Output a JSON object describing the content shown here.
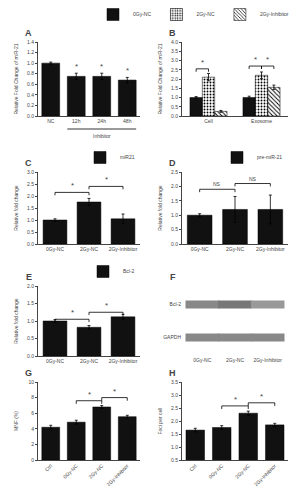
{
  "chart_data": [
    {
      "type": "bar",
      "title": "A",
      "categories": [
        "NC",
        "12h",
        "24h",
        "48h"
      ],
      "values": [
        1.0,
        0.75,
        0.75,
        0.68
      ],
      "errors": [
        0.02,
        0.06,
        0.06,
        0.05
      ],
      "color": "#111111",
      "ylabel": "Relative Fold Change of miR-21",
      "ylim": [
        0,
        1.4
      ],
      "yticks": [
        {
          "value": 0,
          "label": "0.0"
        },
        0.2,
        0.4,
        0.6,
        0.8,
        {
          "value": 1,
          "label": "1.0"
        },
        1.2,
        1.4
      ],
      "grid": false,
      "annotations": [
        {
          "text": "Inhibitor",
          "x": [
            1,
            3
          ]
        },
        {
          "text": "*",
          "x": 1
        },
        {
          "text": "*",
          "x": 2
        },
        {
          "text": "*",
          "x": 3
        }
      ]
    },
    {
      "type": "bar",
      "title": "B",
      "categories": [
        "Cell",
        "Exosome"
      ],
      "series": [
        {
          "name": "0Gy-NC",
          "color": "#111111",
          "values": [
            1.0,
            1.0
          ],
          "errors": [
            0.05,
            0.07
          ]
        },
        {
          "name": "2Gy-NC",
          "color": "#aaaaaa",
          "values": [
            2.1,
            2.2
          ],
          "errors": [
            0.2,
            0.18
          ]
        },
        {
          "name": "2Gy-Inhibitor",
          "color": "white",
          "values": [
            0.25,
            1.55
          ],
          "errors": [
            0.05,
            0.12
          ]
        }
      ],
      "ylabel": "Relative Fold Change of miR-21",
      "ylim": [
        0,
        4
      ],
      "yticks": [
        {
          "value": 0,
          "label": "0.0"
        },
        0.5,
        {
          "value": 1,
          "label": "1.0"
        },
        1.5,
        {
          "value": 2,
          "label": "2.0"
        },
        2.5,
        {
          "value": 3,
          "label": "3.0"
        },
        3.5,
        {
          "value": 4,
          "label": "4.0"
        }
      ],
      "grid": false,
      "annotations": [
        {
          "text": "*",
          "x": 0,
          "series": [
            0,
            1
          ],
          "y": 2.55
        },
        {
          "text": "*",
          "x": 1,
          "series": [
            0,
            1
          ],
          "y": 2.7
        },
        {
          "text": "*",
          "x": 1,
          "series": [
            1,
            2
          ],
          "y": 2.7
        }
      ]
    },
    {
      "type": "bar",
      "title": "C",
      "categories": [
        "0Gy-NC",
        "2Gy-NC",
        "2Gy-Inhibitor"
      ],
      "series": [
        {
          "name": "miR21",
          "color": "#111111",
          "values": [
            1.0,
            1.75,
            1.05
          ],
          "errors": [
            0.05,
            0.15,
            0.2
          ]
        }
      ],
      "ylabel": "Relative fold change",
      "ylim": [
        0,
        3
      ],
      "yticks": [
        {
          "value": 0,
          "label": "0.0"
        },
        0.5,
        {
          "value": 1,
          "label": "1.0"
        },
        1.5,
        {
          "value": 2,
          "label": "2.0"
        },
        2.5,
        {
          "value": 3,
          "label": "3.0"
        }
      ],
      "grid": false,
      "annotations": [
        {
          "text": "*",
          "x": [
            0,
            1
          ],
          "y": 2.15
        },
        {
          "text": "*",
          "x": [
            1,
            2
          ],
          "y": 2.4
        }
      ]
    },
    {
      "type": "bar",
      "title": "D",
      "categories": [
        "0Gy-NC",
        "2Gy-NC",
        "2Gy-Inhibitor"
      ],
      "series": [
        {
          "name": "pre-miR-21",
          "color": "#111111",
          "values": [
            1.0,
            1.2,
            1.2
          ],
          "errors": [
            0.05,
            0.45,
            0.5
          ]
        }
      ],
      "ylabel": "Relative fold change",
      "ylim": [
        0,
        2.5
      ],
      "yticks": [
        {
          "value": 0,
          "label": "0.0"
        },
        0.5,
        {
          "value": 1,
          "label": "1.0"
        },
        1.5,
        {
          "value": 2,
          "label": "2.0"
        },
        2.5
      ],
      "grid": false,
      "annotations": [
        {
          "text": "NS",
          "x": [
            0,
            1
          ],
          "y": 1.9
        },
        {
          "text": "NS",
          "x": [
            1,
            2
          ],
          "y": 2.1
        }
      ]
    },
    {
      "type": "bar",
      "title": "E",
      "categories": [
        "0Gy-NC",
        "2Gy-NC",
        "2Gy-Inhibitor"
      ],
      "series": [
        {
          "name": "Bcl-2",
          "color": "#111111",
          "values": [
            1.0,
            0.82,
            1.12
          ],
          "errors": [
            0.04,
            0.05,
            0.07
          ]
        }
      ],
      "ylabel": "Relative fold change",
      "ylim": [
        0,
        2
      ],
      "yticks": [
        {
          "value": 0,
          "label": "0.0"
        },
        0.5,
        {
          "value": 1,
          "label": "1.0"
        },
        1.5,
        {
          "value": 2,
          "label": "2.0"
        }
      ],
      "grid": false,
      "annotations": [
        {
          "text": "*",
          "x": [
            0,
            1
          ],
          "y": 1.05
        },
        {
          "text": "*",
          "x": [
            1,
            2
          ],
          "y": 1.25
        }
      ]
    },
    {
      "type": "blot",
      "title": "F",
      "categories": [
        "0Gy-NC",
        "2Gy-NC",
        "2Gy-Inhibitor"
      ],
      "series": [
        {
          "name": "Bcl-2",
          "colors": [
            "#888888",
            "#777777",
            "#999999"
          ]
        },
        {
          "name": "GAPDH",
          "colors": [
            "#888888",
            "#888888",
            "#888888"
          ]
        }
      ],
      "grid": false
    },
    {
      "type": "bar",
      "title": "G",
      "categories": [
        "Ctrl",
        "0Gy-NC",
        "2Gy-NC",
        "2Gy-Inhibitor"
      ],
      "values": [
        4.2,
        4.85,
        6.8,
        5.55
      ],
      "errors": [
        0.25,
        0.25,
        0.18,
        0.18
      ],
      "color": "#111111",
      "ylabel": "MNF (%)",
      "ylim": [
        0,
        10
      ],
      "yticks": [
        0,
        2,
        4,
        6,
        8,
        10
      ],
      "grid": false,
      "annotations": [
        {
          "text": "*",
          "x": [
            1,
            2
          ],
          "y": 7.6
        },
        {
          "text": "*",
          "x": [
            2,
            3
          ],
          "y": 8.0
        }
      ]
    },
    {
      "type": "bar",
      "title": "H",
      "categories": [
        "Ctrl",
        "0Gy-NC",
        "2Gy-NC",
        "2Gy-Inhibitor"
      ],
      "values": [
        1.65,
        1.75,
        2.3,
        1.85
      ],
      "errors": [
        0.07,
        0.07,
        0.08,
        0.06
      ],
      "color": "#111111",
      "ylabel": "Foci per cell",
      "ylim": [
        0.5,
        3.5
      ],
      "yticks": [
        0.5,
        {
          "value": 1,
          "label": "1.0"
        },
        1.5,
        {
          "value": 2,
          "label": "2.0"
        },
        2.5,
        {
          "value": 3,
          "label": "3.0"
        },
        3.5
      ],
      "grid": false,
      "annotations": [
        {
          "text": "*",
          "x": [
            1,
            2
          ],
          "y": 2.58
        },
        {
          "text": "*",
          "x": [
            2,
            3
          ],
          "y": 2.7
        }
      ]
    }
  ]
}
